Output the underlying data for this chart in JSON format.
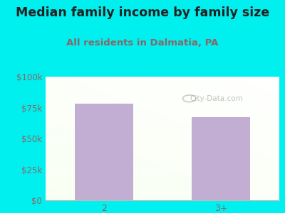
{
  "title": "Median family income by family size",
  "subtitle": "All residents in Dalmatia, PA",
  "categories": [
    "2",
    "3+"
  ],
  "values": [
    78000,
    67000
  ],
  "bar_color": "#b8a0cc",
  "background_color": "#00f0f0",
  "ylim": [
    0,
    100000
  ],
  "yticks": [
    0,
    25000,
    50000,
    75000,
    100000
  ],
  "ytick_labels": [
    "$0",
    "$25k",
    "$50k",
    "$75k",
    "$100k"
  ],
  "title_color": "#222222",
  "subtitle_color": "#8b6565",
  "tick_color": "#8b6565",
  "watermark": "City-Data.com",
  "title_fontsize": 12.5,
  "subtitle_fontsize": 9.5,
  "bar_alpha": 0.85
}
